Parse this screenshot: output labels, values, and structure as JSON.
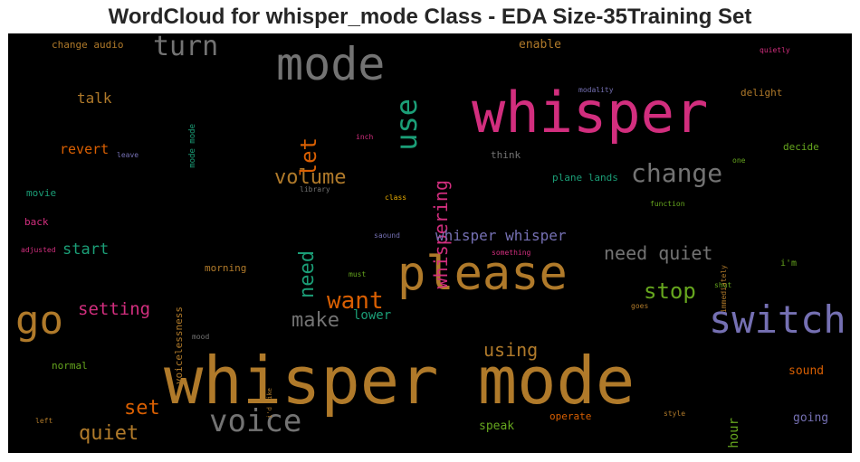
{
  "chart_data": {
    "type": "wordcloud",
    "title": "WordCloud for whisper_mode Class - EDA Size-35Training Set",
    "words": [
      {
        "text": "whisper mode",
        "color": "#b07a2a"
      },
      {
        "text": "whisper",
        "color": "#d22e7e"
      },
      {
        "text": "please",
        "color": "#b07a2a"
      },
      {
        "text": "mode",
        "color": "#737373"
      },
      {
        "text": "switch",
        "color": "#7570b3"
      },
      {
        "text": "go",
        "color": "#b07a2a"
      },
      {
        "text": "voice",
        "color": "#737373"
      },
      {
        "text": "turn",
        "color": "#737373"
      },
      {
        "text": "use",
        "color": "#1b9e77"
      },
      {
        "text": "whispering",
        "color": "#d22e7e"
      },
      {
        "text": "change",
        "color": "#737373"
      },
      {
        "text": "want",
        "color": "#d95f02"
      },
      {
        "text": "volume",
        "color": "#b07a2a"
      },
      {
        "text": "let",
        "color": "#d95f02"
      },
      {
        "text": "need",
        "color": "#1b9e77"
      },
      {
        "text": "stop",
        "color": "#66a61e"
      },
      {
        "text": "make",
        "color": "#737373"
      },
      {
        "text": "need quiet",
        "color": "#737373"
      },
      {
        "text": "using",
        "color": "#b07a2a"
      },
      {
        "text": "quiet",
        "color": "#b07a2a"
      },
      {
        "text": "set",
        "color": "#d95f02"
      },
      {
        "text": "whisper whisper",
        "color": "#7570b3"
      },
      {
        "text": "setting",
        "color": "#d22e7e"
      },
      {
        "text": "start",
        "color": "#1b9e77"
      },
      {
        "text": "talk",
        "color": "#b07a2a"
      },
      {
        "text": "revert",
        "color": "#d95f02"
      },
      {
        "text": "lower",
        "color": "#1b9e77"
      },
      {
        "text": "speak",
        "color": "#66a61e"
      },
      {
        "text": "hour",
        "color": "#66a61e"
      },
      {
        "text": "sound",
        "color": "#d95f02"
      },
      {
        "text": "going",
        "color": "#7570b3"
      },
      {
        "text": "enable",
        "color": "#b07a2a"
      },
      {
        "text": "plane lands",
        "color": "#1b9e77"
      },
      {
        "text": "change audio",
        "color": "#b07a2a"
      },
      {
        "text": "delight",
        "color": "#b07a2a"
      },
      {
        "text": "decide",
        "color": "#66a61e"
      },
      {
        "text": "think",
        "color": "#737373"
      },
      {
        "text": "morning",
        "color": "#b07a2a"
      },
      {
        "text": "voicelessness",
        "color": "#b07a2a"
      },
      {
        "text": "mode mode",
        "color": "#1b9e77"
      },
      {
        "text": "movie",
        "color": "#1b9e77"
      },
      {
        "text": "back",
        "color": "#d22e7e"
      },
      {
        "text": "normal",
        "color": "#66a61e"
      },
      {
        "text": "operate",
        "color": "#d95f02"
      },
      {
        "text": "i'm",
        "color": "#66a61e"
      },
      {
        "text": "quietly",
        "color": "#d22e7e"
      },
      {
        "text": "modality",
        "color": "#7570b3"
      },
      {
        "text": "inch",
        "color": "#d22e7e"
      },
      {
        "text": "leave",
        "color": "#7570b3"
      },
      {
        "text": "one",
        "color": "#66a61e"
      },
      {
        "text": "library",
        "color": "#737373"
      },
      {
        "text": "class",
        "color": "#e6ab02"
      },
      {
        "text": "function",
        "color": "#66a61e"
      },
      {
        "text": "immediately",
        "color": "#b07a2a"
      },
      {
        "text": "adjusted",
        "color": "#d22e7e"
      },
      {
        "text": "saound",
        "color": "#7570b3"
      },
      {
        "text": "something",
        "color": "#d22e7e"
      },
      {
        "text": "must",
        "color": "#66a61e"
      },
      {
        "text": "shut",
        "color": "#66a61e"
      },
      {
        "text": "goes",
        "color": "#b07a2a"
      },
      {
        "text": "mood",
        "color": "#737373"
      },
      {
        "text": "i'd like",
        "color": "#b07a2a"
      },
      {
        "text": "left",
        "color": "#b07a2a"
      },
      {
        "text": "style",
        "color": "#b07a2a"
      }
    ]
  }
}
